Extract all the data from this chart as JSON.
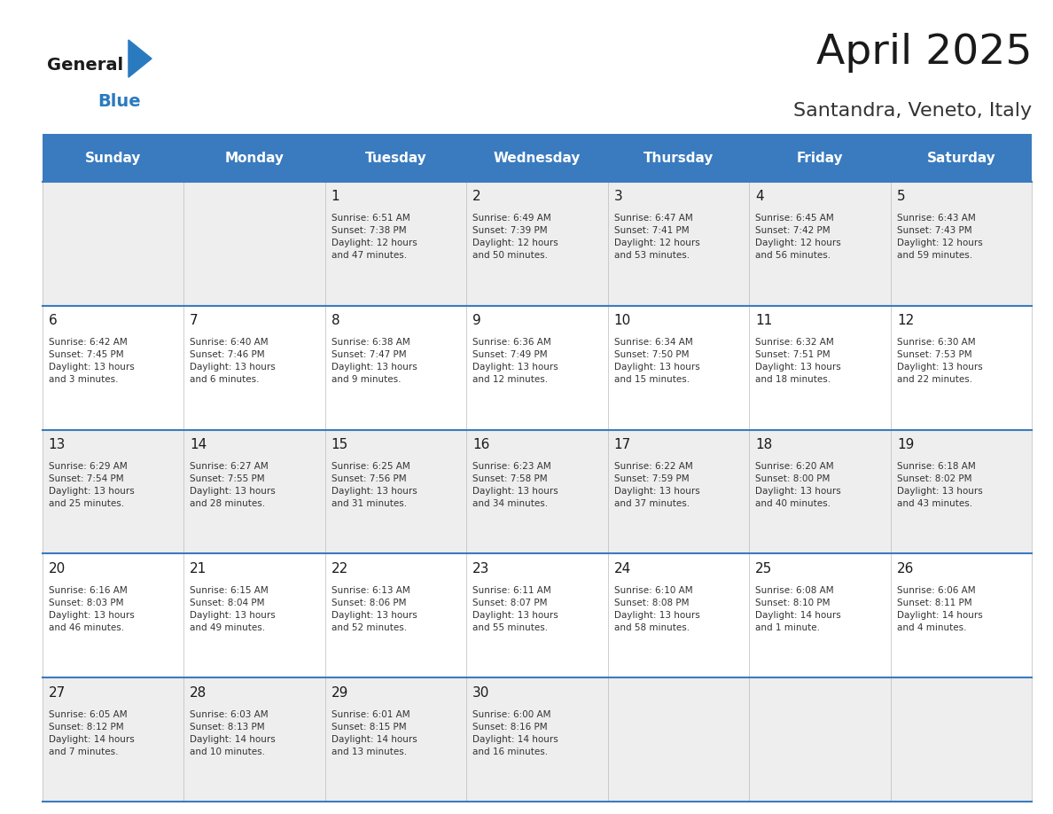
{
  "title": "April 2025",
  "subtitle": "Santandra, Veneto, Italy",
  "header_bg_color": "#3a7bbf",
  "header_text_color": "#ffffff",
  "weekdays": [
    "Sunday",
    "Monday",
    "Tuesday",
    "Wednesday",
    "Thursday",
    "Friday",
    "Saturday"
  ],
  "title_color": "#1a1a1a",
  "subtitle_color": "#333333",
  "cell_bg_odd": "#eeeeee",
  "cell_bg_even": "#ffffff",
  "day_number_color": "#1a1a1a",
  "cell_text_color": "#333333",
  "grid_line_color": "#3a7bbf",
  "logo_general_color": "#1a1a1a",
  "logo_blue_color": "#2a7abf",
  "weeks": [
    [
      {
        "day": null,
        "text": ""
      },
      {
        "day": null,
        "text": ""
      },
      {
        "day": 1,
        "text": "Sunrise: 6:51 AM\nSunset: 7:38 PM\nDaylight: 12 hours\nand 47 minutes."
      },
      {
        "day": 2,
        "text": "Sunrise: 6:49 AM\nSunset: 7:39 PM\nDaylight: 12 hours\nand 50 minutes."
      },
      {
        "day": 3,
        "text": "Sunrise: 6:47 AM\nSunset: 7:41 PM\nDaylight: 12 hours\nand 53 minutes."
      },
      {
        "day": 4,
        "text": "Sunrise: 6:45 AM\nSunset: 7:42 PM\nDaylight: 12 hours\nand 56 minutes."
      },
      {
        "day": 5,
        "text": "Sunrise: 6:43 AM\nSunset: 7:43 PM\nDaylight: 12 hours\nand 59 minutes."
      }
    ],
    [
      {
        "day": 6,
        "text": "Sunrise: 6:42 AM\nSunset: 7:45 PM\nDaylight: 13 hours\nand 3 minutes."
      },
      {
        "day": 7,
        "text": "Sunrise: 6:40 AM\nSunset: 7:46 PM\nDaylight: 13 hours\nand 6 minutes."
      },
      {
        "day": 8,
        "text": "Sunrise: 6:38 AM\nSunset: 7:47 PM\nDaylight: 13 hours\nand 9 minutes."
      },
      {
        "day": 9,
        "text": "Sunrise: 6:36 AM\nSunset: 7:49 PM\nDaylight: 13 hours\nand 12 minutes."
      },
      {
        "day": 10,
        "text": "Sunrise: 6:34 AM\nSunset: 7:50 PM\nDaylight: 13 hours\nand 15 minutes."
      },
      {
        "day": 11,
        "text": "Sunrise: 6:32 AM\nSunset: 7:51 PM\nDaylight: 13 hours\nand 18 minutes."
      },
      {
        "day": 12,
        "text": "Sunrise: 6:30 AM\nSunset: 7:53 PM\nDaylight: 13 hours\nand 22 minutes."
      }
    ],
    [
      {
        "day": 13,
        "text": "Sunrise: 6:29 AM\nSunset: 7:54 PM\nDaylight: 13 hours\nand 25 minutes."
      },
      {
        "day": 14,
        "text": "Sunrise: 6:27 AM\nSunset: 7:55 PM\nDaylight: 13 hours\nand 28 minutes."
      },
      {
        "day": 15,
        "text": "Sunrise: 6:25 AM\nSunset: 7:56 PM\nDaylight: 13 hours\nand 31 minutes."
      },
      {
        "day": 16,
        "text": "Sunrise: 6:23 AM\nSunset: 7:58 PM\nDaylight: 13 hours\nand 34 minutes."
      },
      {
        "day": 17,
        "text": "Sunrise: 6:22 AM\nSunset: 7:59 PM\nDaylight: 13 hours\nand 37 minutes."
      },
      {
        "day": 18,
        "text": "Sunrise: 6:20 AM\nSunset: 8:00 PM\nDaylight: 13 hours\nand 40 minutes."
      },
      {
        "day": 19,
        "text": "Sunrise: 6:18 AM\nSunset: 8:02 PM\nDaylight: 13 hours\nand 43 minutes."
      }
    ],
    [
      {
        "day": 20,
        "text": "Sunrise: 6:16 AM\nSunset: 8:03 PM\nDaylight: 13 hours\nand 46 minutes."
      },
      {
        "day": 21,
        "text": "Sunrise: 6:15 AM\nSunset: 8:04 PM\nDaylight: 13 hours\nand 49 minutes."
      },
      {
        "day": 22,
        "text": "Sunrise: 6:13 AM\nSunset: 8:06 PM\nDaylight: 13 hours\nand 52 minutes."
      },
      {
        "day": 23,
        "text": "Sunrise: 6:11 AM\nSunset: 8:07 PM\nDaylight: 13 hours\nand 55 minutes."
      },
      {
        "day": 24,
        "text": "Sunrise: 6:10 AM\nSunset: 8:08 PM\nDaylight: 13 hours\nand 58 minutes."
      },
      {
        "day": 25,
        "text": "Sunrise: 6:08 AM\nSunset: 8:10 PM\nDaylight: 14 hours\nand 1 minute."
      },
      {
        "day": 26,
        "text": "Sunrise: 6:06 AM\nSunset: 8:11 PM\nDaylight: 14 hours\nand 4 minutes."
      }
    ],
    [
      {
        "day": 27,
        "text": "Sunrise: 6:05 AM\nSunset: 8:12 PM\nDaylight: 14 hours\nand 7 minutes."
      },
      {
        "day": 28,
        "text": "Sunrise: 6:03 AM\nSunset: 8:13 PM\nDaylight: 14 hours\nand 10 minutes."
      },
      {
        "day": 29,
        "text": "Sunrise: 6:01 AM\nSunset: 8:15 PM\nDaylight: 14 hours\nand 13 minutes."
      },
      {
        "day": 30,
        "text": "Sunrise: 6:00 AM\nSunset: 8:16 PM\nDaylight: 14 hours\nand 16 minutes."
      },
      {
        "day": null,
        "text": ""
      },
      {
        "day": null,
        "text": ""
      },
      {
        "day": null,
        "text": ""
      }
    ]
  ]
}
